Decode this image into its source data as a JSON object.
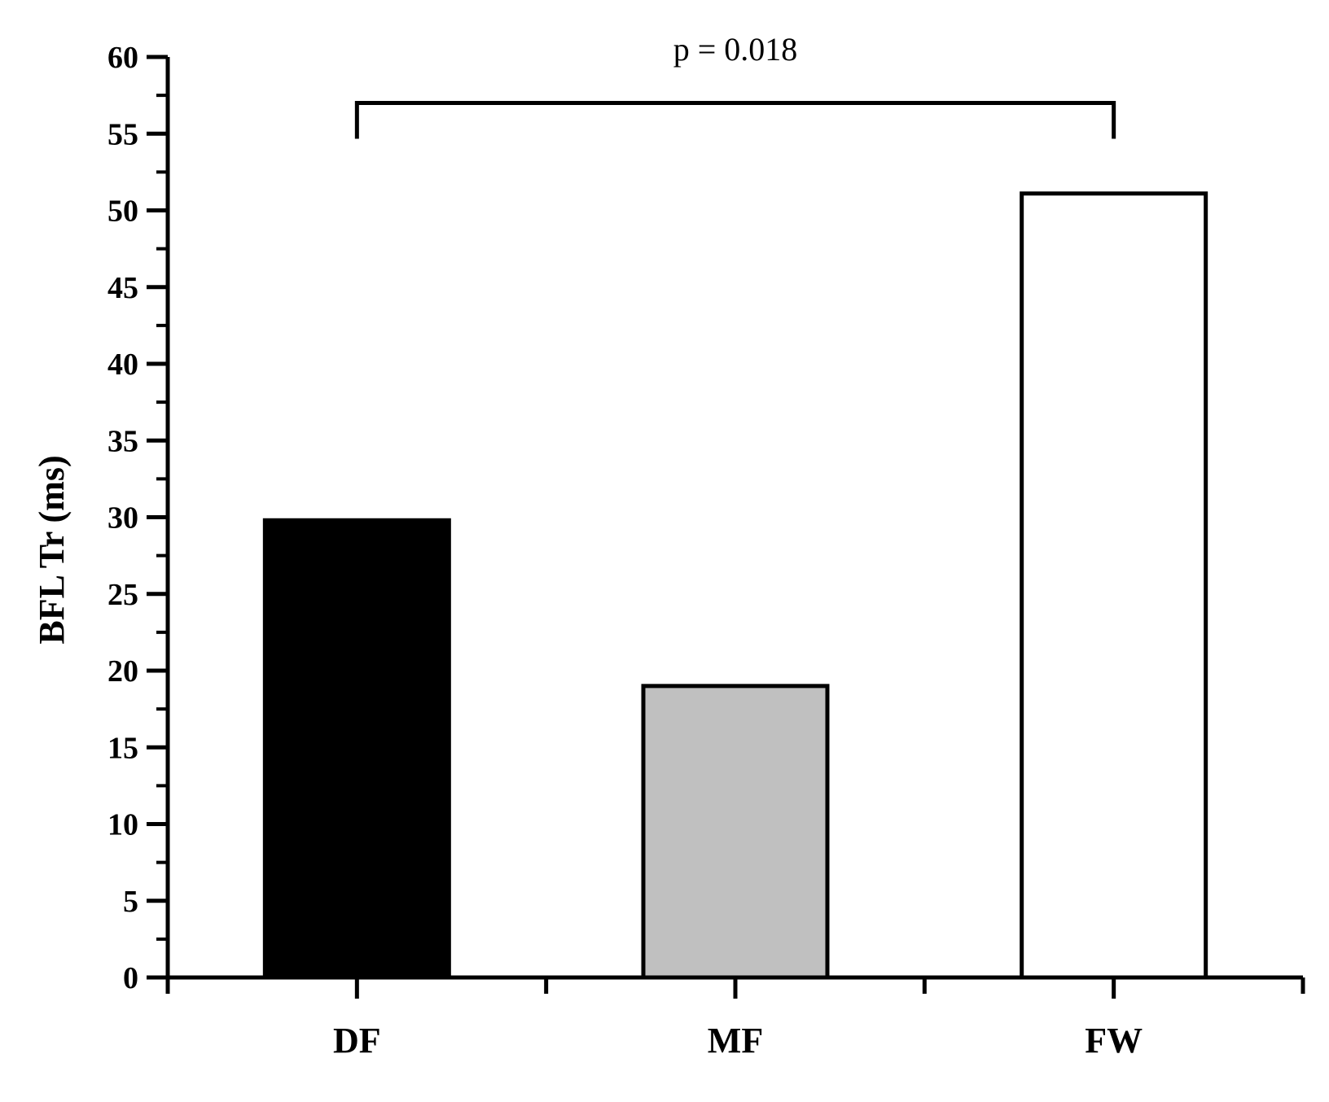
{
  "chart_data": {
    "type": "bar",
    "title": "",
    "xlabel": "",
    "ylabel": "BFL Tr (ms)",
    "categories": [
      "DF",
      "MF",
      "FW"
    ],
    "values": [
      29.8,
      19.0,
      51.1
    ],
    "bar_colors": [
      "#000000",
      "#c0c0c0",
      "#ffffff"
    ],
    "ylim": [
      0,
      60
    ],
    "yticks": [
      "0",
      "5",
      "10",
      "15",
      "20",
      "25",
      "30",
      "35",
      "40",
      "45",
      "50",
      "55",
      "60"
    ],
    "grid": false,
    "legend": "none",
    "annotations": [
      {
        "type": "significance-bracket",
        "from": "DF",
        "to": "FW",
        "text": "p = 0.018",
        "level": 57
      }
    ]
  }
}
